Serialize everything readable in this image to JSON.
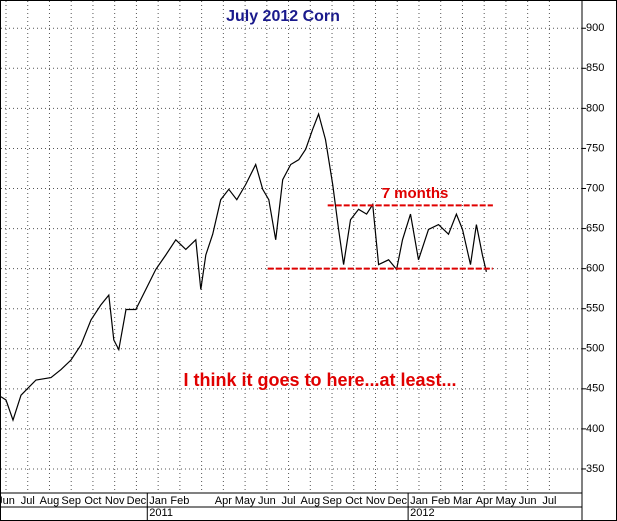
{
  "chart_data": {
    "type": "line",
    "title": "July 2012 Corn",
    "series": [
      {
        "name": "July 2012 Corn",
        "color": "#000000",
        "x": [
          0.27,
          0.5,
          0.82,
          1.19,
          1.88,
          2.57,
          3.03,
          3.49,
          3.95,
          4.41,
          4.87,
          5.23,
          5.46,
          5.69,
          6.02,
          6.47,
          6.93,
          7.39,
          7.85,
          8.31,
          8.77,
          9.23,
          9.46,
          9.69,
          10.01,
          10.38,
          10.75,
          11.12,
          11.53,
          11.99,
          12.31,
          12.59,
          12.91,
          13.23,
          13.6,
          13.97,
          14.29,
          14.61,
          14.88,
          15.2,
          15.53,
          15.8,
          16.03,
          16.35,
          16.72,
          17.09,
          17.37,
          17.64,
          18.1,
          18.47,
          18.74,
          19.11,
          19.48,
          19.94,
          20.4,
          20.86,
          21.22,
          21.5,
          21.87,
          22.14,
          22.42,
          22.6
        ],
        "values": [
          440,
          436,
          411,
          442,
          461,
          464,
          474,
          486,
          505,
          536,
          555,
          567,
          511,
          499,
          549,
          549,
          574,
          599,
          617,
          636,
          624,
          636,
          574,
          617,
          643,
          686,
          699,
          686,
          705,
          730,
          699,
          686,
          636,
          711,
          730,
          736,
          749,
          774,
          793,
          761,
          705,
          649,
          605,
          661,
          674,
          668,
          680,
          605,
          611,
          599,
          636,
          668,
          611,
          649,
          655,
          643,
          668,
          649,
          605,
          655,
          617,
          596
        ]
      }
    ],
    "xlim": [
      0.27,
      27
    ],
    "xticks": [
      {
        "value": 0.5,
        "label": "Jun"
      },
      {
        "value": 1.5,
        "label": "Jul"
      },
      {
        "value": 2.5,
        "label": "Aug"
      },
      {
        "value": 3.5,
        "label": "Sep"
      },
      {
        "value": 4.5,
        "label": "Oct"
      },
      {
        "value": 5.5,
        "label": "Nov"
      },
      {
        "value": 6.5,
        "label": "Dec"
      },
      {
        "value": 7.5,
        "label": "Jan"
      },
      {
        "value": 8.5,
        "label": "Feb"
      },
      {
        "value": 9.5,
        "label": null
      },
      {
        "value": 10.5,
        "label": "Apr"
      },
      {
        "value": 11.5,
        "label": "May"
      },
      {
        "value": 12.5,
        "label": "Jun"
      },
      {
        "value": 13.5,
        "label": "Jul"
      },
      {
        "value": 14.5,
        "label": "Aug"
      },
      {
        "value": 15.5,
        "label": "Sep"
      },
      {
        "value": 16.5,
        "label": "Oct"
      },
      {
        "value": 17.5,
        "label": "Nov"
      },
      {
        "value": 18.5,
        "label": "Dec"
      },
      {
        "value": 19.5,
        "label": "Jan"
      },
      {
        "value": 20.5,
        "label": "Feb"
      },
      {
        "value": 21.5,
        "label": "Mar"
      },
      {
        "value": 22.5,
        "label": "Apr"
      },
      {
        "value": 23.5,
        "label": "May"
      },
      {
        "value": 24.5,
        "label": "Jun"
      },
      {
        "value": 25.5,
        "label": "Jul"
      }
    ],
    "year_ticks": [
      {
        "value": 7,
        "label": "2011"
      },
      {
        "value": 19,
        "label": "2012"
      }
    ],
    "ylim": [
      320,
      934
    ],
    "yticks": [
      350,
      400,
      450,
      500,
      550,
      600,
      650,
      700,
      750,
      800,
      850,
      900
    ],
    "grid": true,
    "reference_lines": [
      {
        "y": 679,
        "x": [
          15.3,
          22.9
        ],
        "color": "#e00000"
      },
      {
        "y": 600,
        "x": [
          12.54,
          22.9
        ],
        "color": "#e00000"
      }
    ],
    "annotations": [
      {
        "text": "7 months",
        "color": "#e00000"
      },
      {
        "text": "I think it goes to here...at least...",
        "color": "#e00000"
      }
    ]
  }
}
